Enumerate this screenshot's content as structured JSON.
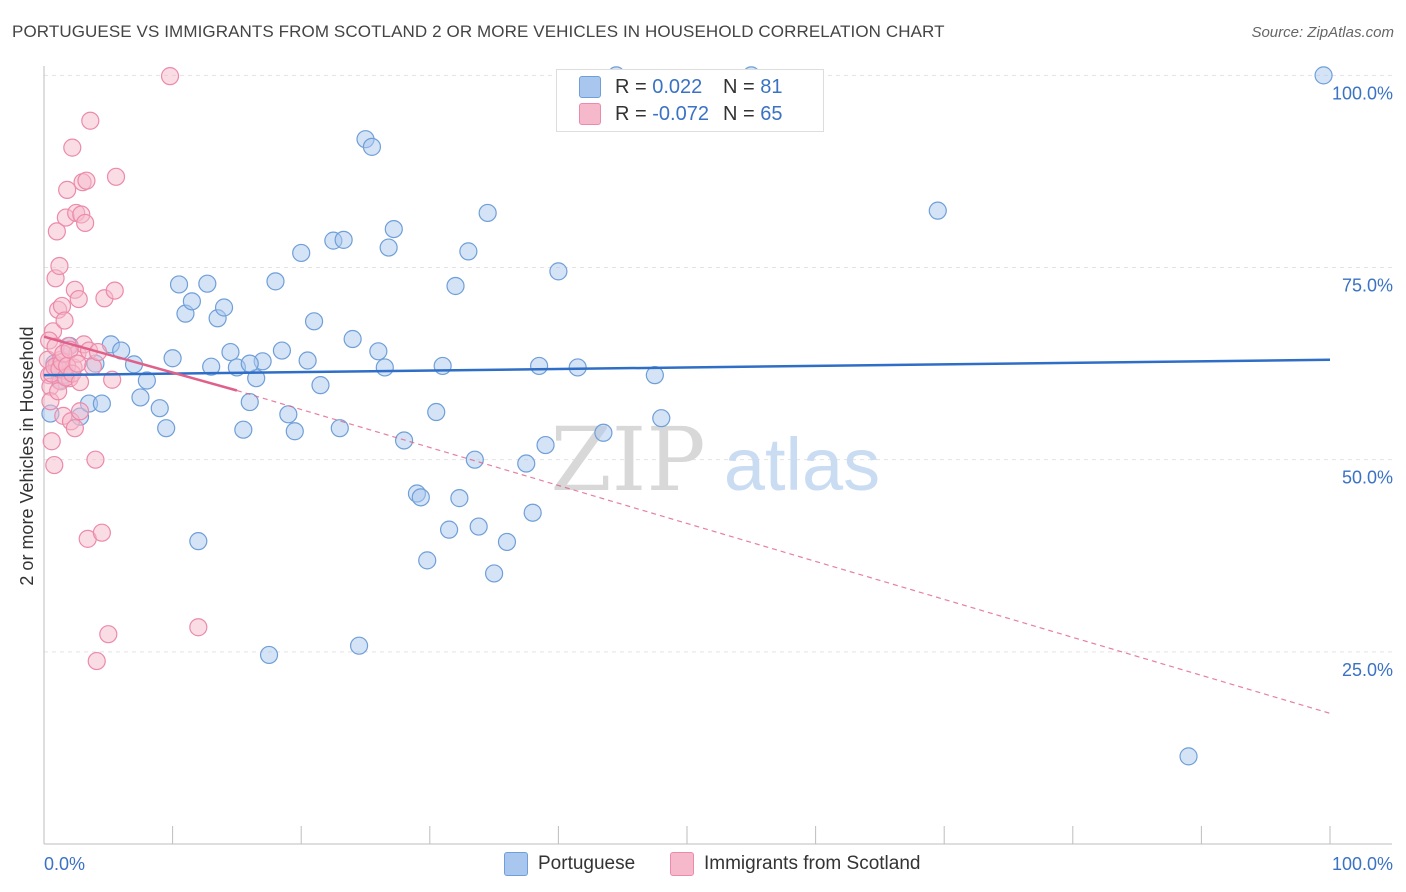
{
  "title": "PORTUGUESE VS IMMIGRANTS FROM SCOTLAND 2 OR MORE VEHICLES IN HOUSEHOLD CORRELATION CHART",
  "source": "Source: ZipAtlas.com",
  "watermark": {
    "zip": "ZIP",
    "atlas": "atlas"
  },
  "legend": {
    "r_label": "R =",
    "n_label": "N =",
    "rows": [
      {
        "r": "0.022",
        "n": "81"
      },
      {
        "r": "-0.072",
        "n": "65"
      }
    ]
  },
  "colors": {
    "blue_fill": "#a9c7ee",
    "blue_stroke": "#6f9fd8",
    "blue_line": "#2f6ec6",
    "pink_fill": "#f6b9cc",
    "pink_stroke": "#ec8aaa",
    "pink_line": "#e0608a",
    "axis_text": "#3a72c4",
    "grid": "#e3e3e3"
  },
  "chart_data": {
    "type": "scatter",
    "title": "PORTUGUESE VS IMMIGRANTS FROM SCOTLAND 2 OR MORE VEHICLES IN HOUSEHOLD CORRELATION CHART",
    "xlabel": "",
    "ylabel": "2 or more Vehicles in Household",
    "xlim": [
      0,
      100
    ],
    "ylim": [
      0,
      102
    ],
    "x_tick_labels": [
      "0.0%",
      "100.0%"
    ],
    "y_ticks": [
      25,
      50,
      75,
      100
    ],
    "y_tick_labels": [
      "25.0%",
      "50.0%",
      "75.0%",
      "100.0%"
    ],
    "series": [
      {
        "name": "Portuguese",
        "color": "blue",
        "trend": {
          "x": [
            0,
            100
          ],
          "y": [
            61.0,
            63.0
          ],
          "style": "solid"
        },
        "points": [
          [
            0.5,
            56.0
          ],
          [
            0.8,
            62.5
          ],
          [
            1.2,
            60.3
          ],
          [
            1.5,
            61.0
          ],
          [
            2.0,
            64.8
          ],
          [
            2.8,
            55.6
          ],
          [
            3.5,
            57.3
          ],
          [
            4.0,
            62.5
          ],
          [
            4.5,
            57.3
          ],
          [
            5.2,
            65.0
          ],
          [
            6.0,
            64.2
          ],
          [
            7.0,
            62.4
          ],
          [
            7.5,
            58.1
          ],
          [
            8.0,
            60.3
          ],
          [
            9.0,
            56.7
          ],
          [
            9.5,
            54.1
          ],
          [
            10.0,
            63.2
          ],
          [
            10.5,
            72.8
          ],
          [
            11.0,
            69.0
          ],
          [
            11.5,
            70.6
          ],
          [
            12.0,
            39.4
          ],
          [
            12.7,
            72.9
          ],
          [
            13.0,
            62.1
          ],
          [
            13.5,
            68.4
          ],
          [
            14.0,
            69.8
          ],
          [
            14.5,
            64.0
          ],
          [
            15.0,
            62.0
          ],
          [
            15.5,
            53.9
          ],
          [
            16.0,
            57.5
          ],
          [
            16.5,
            60.6
          ],
          [
            17.0,
            62.8
          ],
          [
            17.5,
            24.6
          ],
          [
            18.0,
            73.2
          ],
          [
            18.5,
            64.2
          ],
          [
            19.0,
            55.9
          ],
          [
            19.5,
            53.7
          ],
          [
            20.0,
            76.9
          ],
          [
            20.5,
            62.9
          ],
          [
            21.0,
            68.0
          ],
          [
            21.5,
            59.7
          ],
          [
            22.5,
            78.5
          ],
          [
            23.0,
            54.1
          ],
          [
            23.3,
            78.6
          ],
          [
            24.0,
            65.7
          ],
          [
            24.5,
            25.8
          ],
          [
            25.0,
            91.7
          ],
          [
            25.5,
            90.7
          ],
          [
            26.0,
            64.1
          ],
          [
            26.8,
            77.6
          ],
          [
            27.2,
            80.0
          ],
          [
            28.0,
            52.5
          ],
          [
            29.0,
            45.6
          ],
          [
            29.3,
            45.1
          ],
          [
            29.8,
            36.9
          ],
          [
            30.5,
            56.2
          ],
          [
            31.0,
            62.2
          ],
          [
            31.5,
            40.9
          ],
          [
            32.0,
            72.6
          ],
          [
            32.3,
            45.0
          ],
          [
            33.0,
            77.1
          ],
          [
            33.8,
            41.3
          ],
          [
            34.5,
            82.1
          ],
          [
            35.0,
            35.2
          ],
          [
            36.0,
            39.3
          ],
          [
            37.5,
            49.5
          ],
          [
            38.0,
            43.1
          ],
          [
            38.5,
            62.2
          ],
          [
            39.0,
            51.9
          ],
          [
            40.0,
            74.5
          ],
          [
            41.5,
            62.0
          ],
          [
            43.5,
            53.5
          ],
          [
            44.5,
            100.0
          ],
          [
            47.5,
            61.0
          ],
          [
            48.0,
            55.4
          ],
          [
            55.0,
            100.0
          ],
          [
            69.5,
            82.4
          ],
          [
            89.0,
            11.4
          ],
          [
            99.5,
            100.0
          ],
          [
            33.5,
            50.0
          ],
          [
            26.5,
            62.0
          ],
          [
            16.0,
            62.5
          ]
        ]
      },
      {
        "name": "Immigrants from Scotland",
        "color": "pink",
        "trend": {
          "x": [
            0,
            15
          ],
          "y": [
            66.0,
            59.0
          ],
          "style": "solid"
        },
        "trend_extension": {
          "x": [
            15,
            100
          ],
          "y": [
            59.0,
            17.0
          ],
          "style": "dashed"
        },
        "points": [
          [
            0.3,
            63.0
          ],
          [
            0.4,
            61.0
          ],
          [
            0.5,
            59.5
          ],
          [
            0.6,
            52.4
          ],
          [
            0.7,
            66.7
          ],
          [
            0.8,
            49.3
          ],
          [
            0.9,
            73.6
          ],
          [
            1.0,
            62.3
          ],
          [
            1.0,
            79.7
          ],
          [
            1.1,
            69.5
          ],
          [
            1.2,
            75.2
          ],
          [
            1.3,
            60.2
          ],
          [
            1.3,
            63.0
          ],
          [
            1.4,
            70.0
          ],
          [
            1.5,
            55.7
          ],
          [
            1.6,
            68.1
          ],
          [
            1.6,
            61.6
          ],
          [
            1.7,
            81.5
          ],
          [
            1.8,
            85.1
          ],
          [
            1.9,
            64.8
          ],
          [
            2.0,
            60.6
          ],
          [
            2.1,
            55.0
          ],
          [
            2.2,
            90.6
          ],
          [
            2.3,
            62.0
          ],
          [
            2.4,
            72.1
          ],
          [
            2.5,
            82.1
          ],
          [
            2.6,
            63.8
          ],
          [
            2.7,
            70.9
          ],
          [
            2.8,
            56.3
          ],
          [
            2.9,
            81.9
          ],
          [
            3.0,
            86.1
          ],
          [
            3.1,
            65.0
          ],
          [
            3.2,
            80.8
          ],
          [
            3.3,
            86.3
          ],
          [
            3.4,
            39.7
          ],
          [
            3.5,
            64.2
          ],
          [
            3.6,
            94.1
          ],
          [
            3.8,
            62.1
          ],
          [
            4.0,
            50.0
          ],
          [
            4.1,
            23.8
          ],
          [
            4.2,
            64.0
          ],
          [
            4.5,
            40.5
          ],
          [
            4.7,
            71.0
          ],
          [
            5.0,
            27.3
          ],
          [
            5.3,
            60.4
          ],
          [
            5.5,
            72.0
          ],
          [
            5.6,
            86.8
          ],
          [
            9.8,
            99.9
          ],
          [
            12.0,
            28.2
          ],
          [
            0.4,
            65.5
          ],
          [
            0.5,
            57.6
          ],
          [
            0.6,
            61.2
          ],
          [
            0.8,
            62.1
          ],
          [
            0.9,
            64.7
          ],
          [
            1.1,
            58.9
          ],
          [
            1.2,
            61.8
          ],
          [
            1.4,
            62.7
          ],
          [
            1.5,
            63.8
          ],
          [
            1.7,
            60.7
          ],
          [
            1.8,
            62.2
          ],
          [
            2.0,
            64.3
          ],
          [
            2.2,
            61.2
          ],
          [
            2.4,
            54.1
          ],
          [
            2.6,
            62.5
          ],
          [
            2.8,
            60.1
          ]
        ]
      }
    ]
  },
  "bottom_legend": [
    {
      "label": "Portuguese"
    },
    {
      "label": "Immigrants from Scotland"
    }
  ]
}
